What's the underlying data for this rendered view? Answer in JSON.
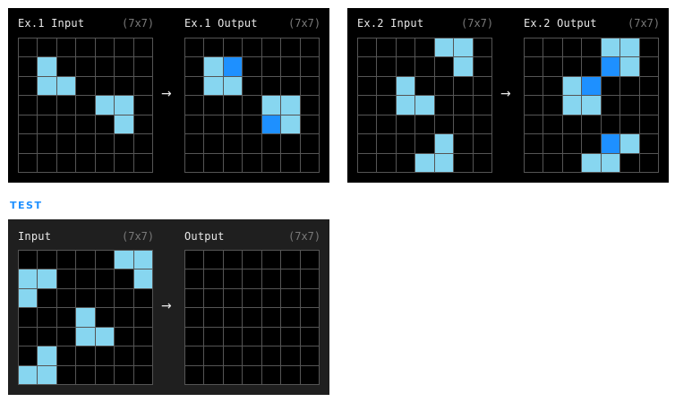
{
  "colors": {
    "0": "#000000",
    "1": "#87d6f0",
    "2": "#1e90ff"
  },
  "examples": [
    {
      "input": {
        "label": "Ex.1 Input",
        "dims": "(7x7)",
        "grid": [
          [
            0,
            0,
            0,
            0,
            0,
            0,
            0
          ],
          [
            0,
            1,
            0,
            0,
            0,
            0,
            0
          ],
          [
            0,
            1,
            1,
            0,
            0,
            0,
            0
          ],
          [
            0,
            0,
            0,
            0,
            1,
            1,
            0
          ],
          [
            0,
            0,
            0,
            0,
            0,
            1,
            0
          ],
          [
            0,
            0,
            0,
            0,
            0,
            0,
            0
          ],
          [
            0,
            0,
            0,
            0,
            0,
            0,
            0
          ]
        ]
      },
      "output": {
        "label": "Ex.1 Output",
        "dims": "(7x7)",
        "grid": [
          [
            0,
            0,
            0,
            0,
            0,
            0,
            0
          ],
          [
            0,
            1,
            2,
            0,
            0,
            0,
            0
          ],
          [
            0,
            1,
            1,
            0,
            0,
            0,
            0
          ],
          [
            0,
            0,
            0,
            0,
            1,
            1,
            0
          ],
          [
            0,
            0,
            0,
            0,
            2,
            1,
            0
          ],
          [
            0,
            0,
            0,
            0,
            0,
            0,
            0
          ],
          [
            0,
            0,
            0,
            0,
            0,
            0,
            0
          ]
        ]
      }
    },
    {
      "input": {
        "label": "Ex.2 Input",
        "dims": "(7x7)",
        "grid": [
          [
            0,
            0,
            0,
            0,
            1,
            1,
            0
          ],
          [
            0,
            0,
            0,
            0,
            0,
            1,
            0
          ],
          [
            0,
            0,
            1,
            0,
            0,
            0,
            0
          ],
          [
            0,
            0,
            1,
            1,
            0,
            0,
            0
          ],
          [
            0,
            0,
            0,
            0,
            0,
            0,
            0
          ],
          [
            0,
            0,
            0,
            0,
            1,
            0,
            0
          ],
          [
            0,
            0,
            0,
            1,
            1,
            0,
            0
          ]
        ]
      },
      "output": {
        "label": "Ex.2 Output",
        "dims": "(7x7)",
        "grid": [
          [
            0,
            0,
            0,
            0,
            1,
            1,
            0
          ],
          [
            0,
            0,
            0,
            0,
            2,
            1,
            0
          ],
          [
            0,
            0,
            1,
            2,
            0,
            0,
            0
          ],
          [
            0,
            0,
            1,
            1,
            0,
            0,
            0
          ],
          [
            0,
            0,
            0,
            0,
            0,
            0,
            0
          ],
          [
            0,
            0,
            0,
            0,
            2,
            1,
            0
          ],
          [
            0,
            0,
            0,
            1,
            1,
            0,
            0
          ]
        ]
      }
    }
  ],
  "test_heading": "TEST",
  "test": {
    "input": {
      "label": "Input",
      "dims": "(7x7)",
      "grid": [
        [
          0,
          0,
          0,
          0,
          0,
          1,
          1
        ],
        [
          1,
          1,
          0,
          0,
          0,
          0,
          1
        ],
        [
          1,
          0,
          0,
          0,
          0,
          0,
          0
        ],
        [
          0,
          0,
          0,
          1,
          0,
          0,
          0
        ],
        [
          0,
          0,
          0,
          1,
          1,
          0,
          0
        ],
        [
          0,
          1,
          0,
          0,
          0,
          0,
          0
        ],
        [
          1,
          1,
          0,
          0,
          0,
          0,
          0
        ]
      ]
    },
    "output": {
      "label": "Output",
      "dims": "(7x7)",
      "grid": [
        [
          0,
          0,
          0,
          0,
          0,
          0,
          0
        ],
        [
          0,
          0,
          0,
          0,
          0,
          0,
          0
        ],
        [
          0,
          0,
          0,
          0,
          0,
          0,
          0
        ],
        [
          0,
          0,
          0,
          0,
          0,
          0,
          0
        ],
        [
          0,
          0,
          0,
          0,
          0,
          0,
          0
        ],
        [
          0,
          0,
          0,
          0,
          0,
          0,
          0
        ],
        [
          0,
          0,
          0,
          0,
          0,
          0,
          0
        ]
      ]
    }
  },
  "arrow_glyph": "→"
}
